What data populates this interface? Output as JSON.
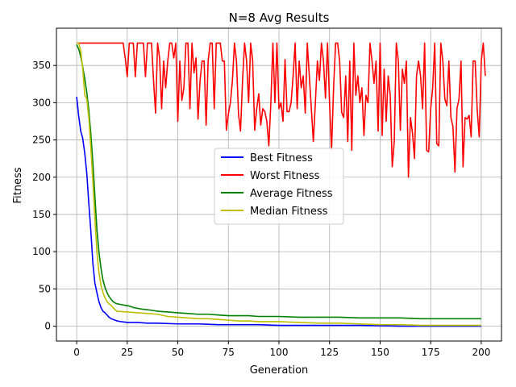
{
  "chart_data": {
    "type": "line",
    "title": "N=8 Avg Results",
    "xlabel": "Generation",
    "ylabel": "Fitness",
    "xlim": [
      -10,
      210
    ],
    "ylim": [
      -20,
      400
    ],
    "x_ticks": [
      "0",
      "25",
      "50",
      "75",
      "100",
      "125",
      "150",
      "175",
      "200"
    ],
    "y_ticks": [
      "0",
      "50",
      "100",
      "150",
      "200",
      "250",
      "300",
      "350"
    ],
    "grid": true,
    "legend_position": "center-right",
    "series": [
      {
        "name": "Best Fitness",
        "color": "#0000ff",
        "points": [
          [
            0,
            308
          ],
          [
            1,
            282
          ],
          [
            2,
            262
          ],
          [
            3,
            252
          ],
          [
            4,
            232
          ],
          [
            5,
            205
          ],
          [
            6,
            165
          ],
          [
            7,
            128
          ],
          [
            8,
            85
          ],
          [
            9,
            58
          ],
          [
            10,
            45
          ],
          [
            11,
            33
          ],
          [
            12,
            25
          ],
          [
            13,
            20
          ],
          [
            14,
            18
          ],
          [
            15,
            15
          ],
          [
            16,
            12
          ],
          [
            17,
            10
          ],
          [
            18,
            9
          ],
          [
            19,
            8
          ],
          [
            20,
            7
          ],
          [
            22,
            6
          ],
          [
            25,
            5
          ],
          [
            30,
            5
          ],
          [
            35,
            4
          ],
          [
            40,
            4
          ],
          [
            50,
            3
          ],
          [
            60,
            3
          ],
          [
            70,
            2
          ],
          [
            80,
            2
          ],
          [
            90,
            2
          ],
          [
            100,
            1
          ],
          [
            120,
            1
          ],
          [
            140,
            1
          ],
          [
            160,
            0
          ],
          [
            180,
            0
          ],
          [
            200,
            0
          ]
        ]
      },
      {
        "name": "Worst Fitness",
        "color": "#ff0000",
        "points": [
          [
            0,
            380
          ],
          [
            23,
            380
          ],
          [
            24,
            360
          ],
          [
            25,
            335
          ],
          [
            26,
            380
          ],
          [
            27,
            380
          ],
          [
            28,
            380
          ],
          [
            29,
            335
          ],
          [
            30,
            380
          ],
          [
            31,
            380
          ],
          [
            32,
            380
          ],
          [
            33,
            380
          ],
          [
            34,
            335
          ],
          [
            35,
            380
          ],
          [
            36,
            380
          ],
          [
            37,
            380
          ],
          [
            38,
            330
          ],
          [
            39,
            286
          ],
          [
            40,
            380
          ],
          [
            41,
            360
          ],
          [
            42,
            292
          ],
          [
            43,
            356
          ],
          [
            44,
            320
          ],
          [
            45,
            355
          ],
          [
            46,
            380
          ],
          [
            47,
            380
          ],
          [
            48,
            360
          ],
          [
            49,
            380
          ],
          [
            50,
            275
          ],
          [
            51,
            356
          ],
          [
            52,
            303
          ],
          [
            53,
            320
          ],
          [
            54,
            380
          ],
          [
            55,
            380
          ],
          [
            56,
            292
          ],
          [
            57,
            380
          ],
          [
            58,
            340
          ],
          [
            59,
            360
          ],
          [
            60,
            278
          ],
          [
            61,
            330
          ],
          [
            62,
            356
          ],
          [
            63,
            356
          ],
          [
            64,
            270
          ],
          [
            65,
            356
          ],
          [
            66,
            380
          ],
          [
            67,
            380
          ],
          [
            68,
            292
          ],
          [
            69,
            380
          ],
          [
            70,
            380
          ],
          [
            71,
            380
          ],
          [
            72,
            356
          ],
          [
            73,
            356
          ],
          [
            74,
            263
          ],
          [
            75,
            285
          ],
          [
            76,
            300
          ],
          [
            77,
            330
          ],
          [
            78,
            380
          ],
          [
            79,
            356
          ],
          [
            80,
            285
          ],
          [
            81,
            262
          ],
          [
            82,
            330
          ],
          [
            83,
            380
          ],
          [
            84,
            356
          ],
          [
            85,
            300
          ],
          [
            86,
            380
          ],
          [
            87,
            356
          ],
          [
            88,
            263
          ],
          [
            89,
            292
          ],
          [
            90,
            312
          ],
          [
            91,
            270
          ],
          [
            92,
            292
          ],
          [
            93,
            288
          ],
          [
            94,
            275
          ],
          [
            95,
            242
          ],
          [
            96,
            300
          ],
          [
            97,
            380
          ],
          [
            98,
            300
          ],
          [
            99,
            380
          ],
          [
            100,
            292
          ],
          [
            101,
            300
          ],
          [
            102,
            275
          ],
          [
            103,
            358
          ],
          [
            104,
            288
          ],
          [
            105,
            288
          ],
          [
            106,
            300
          ],
          [
            107,
            336
          ],
          [
            108,
            380
          ],
          [
            109,
            292
          ],
          [
            110,
            356
          ],
          [
            111,
            320
          ],
          [
            112,
            336
          ],
          [
            113,
            286
          ],
          [
            114,
            380
          ],
          [
            115,
            336
          ],
          [
            116,
            292
          ],
          [
            117,
            248
          ],
          [
            118,
            300
          ],
          [
            119,
            356
          ],
          [
            120,
            330
          ],
          [
            121,
            380
          ],
          [
            122,
            356
          ],
          [
            123,
            306
          ],
          [
            124,
            380
          ],
          [
            125,
            300
          ],
          [
            126,
            236
          ],
          [
            127,
            320
          ],
          [
            128,
            380
          ],
          [
            129,
            380
          ],
          [
            130,
            356
          ],
          [
            131,
            287
          ],
          [
            132,
            280
          ],
          [
            133,
            336
          ],
          [
            134,
            248
          ],
          [
            135,
            356
          ],
          [
            136,
            236
          ],
          [
            137,
            380
          ],
          [
            138,
            310
          ],
          [
            139,
            336
          ],
          [
            140,
            300
          ],
          [
            141,
            320
          ],
          [
            142,
            256
          ],
          [
            143,
            310
          ],
          [
            144,
            300
          ],
          [
            145,
            380
          ],
          [
            146,
            356
          ],
          [
            147,
            326
          ],
          [
            148,
            356
          ],
          [
            149,
            262
          ],
          [
            150,
            380
          ],
          [
            151,
            256
          ],
          [
            152,
            345
          ],
          [
            153,
            275
          ],
          [
            154,
            336
          ],
          [
            155,
            310
          ],
          [
            156,
            214
          ],
          [
            157,
            248
          ],
          [
            158,
            380
          ],
          [
            159,
            356
          ],
          [
            160,
            263
          ],
          [
            161,
            345
          ],
          [
            162,
            326
          ],
          [
            163,
            356
          ],
          [
            164,
            200
          ],
          [
            165,
            280
          ],
          [
            166,
            260
          ],
          [
            167,
            225
          ],
          [
            168,
            336
          ],
          [
            169,
            356
          ],
          [
            170,
            336
          ],
          [
            171,
            292
          ],
          [
            172,
            380
          ],
          [
            173,
            236
          ],
          [
            174,
            234
          ],
          [
            175,
            292
          ],
          [
            176,
            320
          ],
          [
            177,
            380
          ],
          [
            178,
            245
          ],
          [
            179,
            242
          ],
          [
            180,
            380
          ],
          [
            181,
            356
          ],
          [
            182,
            305
          ],
          [
            183,
            296
          ],
          [
            184,
            356
          ],
          [
            185,
            280
          ],
          [
            186,
            268
          ],
          [
            187,
            207
          ],
          [
            188,
            292
          ],
          [
            189,
            305
          ],
          [
            190,
            356
          ],
          [
            191,
            214
          ],
          [
            192,
            280
          ],
          [
            193,
            278
          ],
          [
            194,
            283
          ],
          [
            195,
            254
          ],
          [
            196,
            356
          ],
          [
            197,
            356
          ],
          [
            198,
            290
          ],
          [
            199,
            254
          ],
          [
            200,
            356
          ],
          [
            201,
            380
          ],
          [
            202,
            336
          ]
        ]
      },
      {
        "name": "Average Fitness",
        "color": "#008000",
        "points": [
          [
            0,
            378
          ],
          [
            1,
            372
          ],
          [
            2,
            362
          ],
          [
            3,
            348
          ],
          [
            4,
            332
          ],
          [
            5,
            314
          ],
          [
            6,
            290
          ],
          [
            7,
            258
          ],
          [
            8,
            220
          ],
          [
            9,
            175
          ],
          [
            10,
            130
          ],
          [
            11,
            100
          ],
          [
            12,
            78
          ],
          [
            13,
            62
          ],
          [
            14,
            52
          ],
          [
            15,
            45
          ],
          [
            16,
            40
          ],
          [
            17,
            36
          ],
          [
            18,
            33
          ],
          [
            19,
            31
          ],
          [
            20,
            30
          ],
          [
            22,
            29
          ],
          [
            24,
            28
          ],
          [
            26,
            27
          ],
          [
            28,
            25
          ],
          [
            30,
            24
          ],
          [
            32,
            23
          ],
          [
            35,
            22
          ],
          [
            38,
            21
          ],
          [
            40,
            20
          ],
          [
            45,
            19
          ],
          [
            50,
            18
          ],
          [
            55,
            17
          ],
          [
            60,
            16
          ],
          [
            65,
            16
          ],
          [
            70,
            15
          ],
          [
            75,
            14
          ],
          [
            80,
            14
          ],
          [
            85,
            14
          ],
          [
            90,
            13
          ],
          [
            95,
            13
          ],
          [
            100,
            13
          ],
          [
            110,
            12
          ],
          [
            120,
            12
          ],
          [
            130,
            12
          ],
          [
            140,
            11
          ],
          [
            150,
            11
          ],
          [
            160,
            11
          ],
          [
            170,
            10
          ],
          [
            180,
            10
          ],
          [
            190,
            10
          ],
          [
            200,
            10
          ]
        ]
      },
      {
        "name": "Median Fitness",
        "color": "#bfbf00",
        "points": [
          [
            0,
            380
          ],
          [
            1,
            380
          ],
          [
            2,
            370
          ],
          [
            3,
            345
          ],
          [
            4,
            310
          ],
          [
            5,
            305
          ],
          [
            6,
            280
          ],
          [
            7,
            240
          ],
          [
            8,
            195
          ],
          [
            9,
            145
          ],
          [
            10,
            100
          ],
          [
            11,
            72
          ],
          [
            12,
            55
          ],
          [
            13,
            45
          ],
          [
            14,
            38
          ],
          [
            15,
            33
          ],
          [
            16,
            30
          ],
          [
            17,
            28
          ],
          [
            18,
            25
          ],
          [
            19,
            22
          ],
          [
            20,
            20
          ],
          [
            25,
            19
          ],
          [
            30,
            18
          ],
          [
            35,
            17
          ],
          [
            40,
            16
          ],
          [
            45,
            13
          ],
          [
            50,
            12
          ],
          [
            55,
            11
          ],
          [
            60,
            10
          ],
          [
            65,
            10
          ],
          [
            70,
            9
          ],
          [
            75,
            8
          ],
          [
            80,
            7
          ],
          [
            85,
            7
          ],
          [
            90,
            6
          ],
          [
            95,
            6
          ],
          [
            100,
            6
          ],
          [
            110,
            5
          ],
          [
            120,
            4
          ],
          [
            130,
            4
          ],
          [
            140,
            3
          ],
          [
            150,
            2
          ],
          [
            160,
            2
          ],
          [
            170,
            1
          ],
          [
            180,
            1
          ],
          [
            190,
            1
          ],
          [
            200,
            1
          ]
        ]
      }
    ]
  }
}
